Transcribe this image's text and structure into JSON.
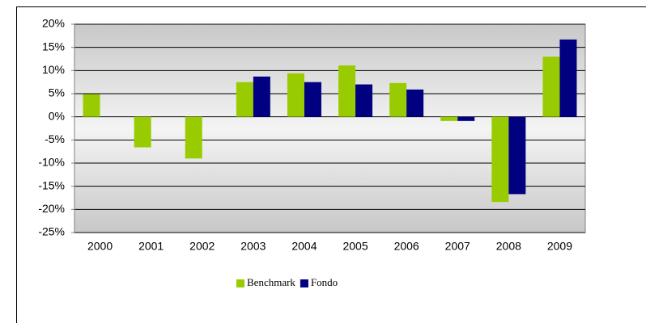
{
  "chart_data": {
    "type": "bar",
    "categories": [
      "2000",
      "2001",
      "2002",
      "2003",
      "2004",
      "2005",
      "2006",
      "2007",
      "2008",
      "2009"
    ],
    "series": [
      {
        "name": "Benchmark",
        "color": "#99cc00",
        "values": [
          4.9,
          -6.6,
          -9.0,
          7.5,
          9.4,
          11.1,
          7.3,
          -0.9,
          -18.4,
          13.0
        ]
      },
      {
        "name": "Fondo",
        "color": "#000080",
        "values": [
          null,
          null,
          null,
          8.7,
          7.5,
          7.0,
          5.9,
          -0.9,
          -16.7,
          16.7
        ]
      }
    ],
    "ylim": [
      -25,
      20
    ],
    "yticks": [
      {
        "value": -25,
        "label": "-25%"
      },
      {
        "value": -20,
        "label": "-20%"
      },
      {
        "value": -15,
        "label": "-15%"
      },
      {
        "value": -10,
        "label": "-10%"
      },
      {
        "value": -5,
        "label": "-5%"
      },
      {
        "value": 0,
        "label": "0%"
      },
      {
        "value": 5,
        "label": "5%"
      },
      {
        "value": 10,
        "label": "10%"
      },
      {
        "value": 15,
        "label": "15%"
      },
      {
        "value": 20,
        "label": "20%"
      }
    ],
    "grid": true,
    "legend": "bottom"
  }
}
